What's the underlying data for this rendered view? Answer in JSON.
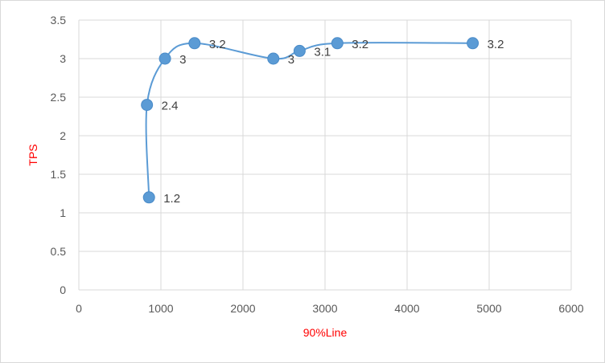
{
  "chart_data": {
    "type": "scatter",
    "xlabel": "90%Line",
    "ylabel": "TPS",
    "xlim": [
      0,
      6000
    ],
    "ylim": [
      0,
      3.5
    ],
    "x_ticks": [
      "0",
      "1000",
      "2000",
      "3000",
      "4000",
      "5000",
      "6000"
    ],
    "y_ticks": [
      "0",
      "0.5",
      "1",
      "1.5",
      "2",
      "2.5",
      "3",
      "3.5"
    ],
    "grid": true,
    "smooth_line": true,
    "series": [
      {
        "x": [
          855,
          830,
          1050,
          1410,
          2370,
          2690,
          3150,
          4800
        ],
        "y": [
          1.2,
          2.4,
          3,
          3.2,
          3,
          3.1,
          3.2,
          3.2
        ],
        "labels": [
          "1.2",
          "2.4",
          "3",
          "3.2",
          "3",
          "3.1",
          "3.2",
          "3.2"
        ]
      }
    ],
    "colors": {
      "series": "#5b9bd5",
      "line": "#5b9bd5",
      "grid": "#d9d9d9",
      "tick_text": "#595959",
      "data_label": "#404040",
      "axis_title": "#ff0000"
    }
  }
}
